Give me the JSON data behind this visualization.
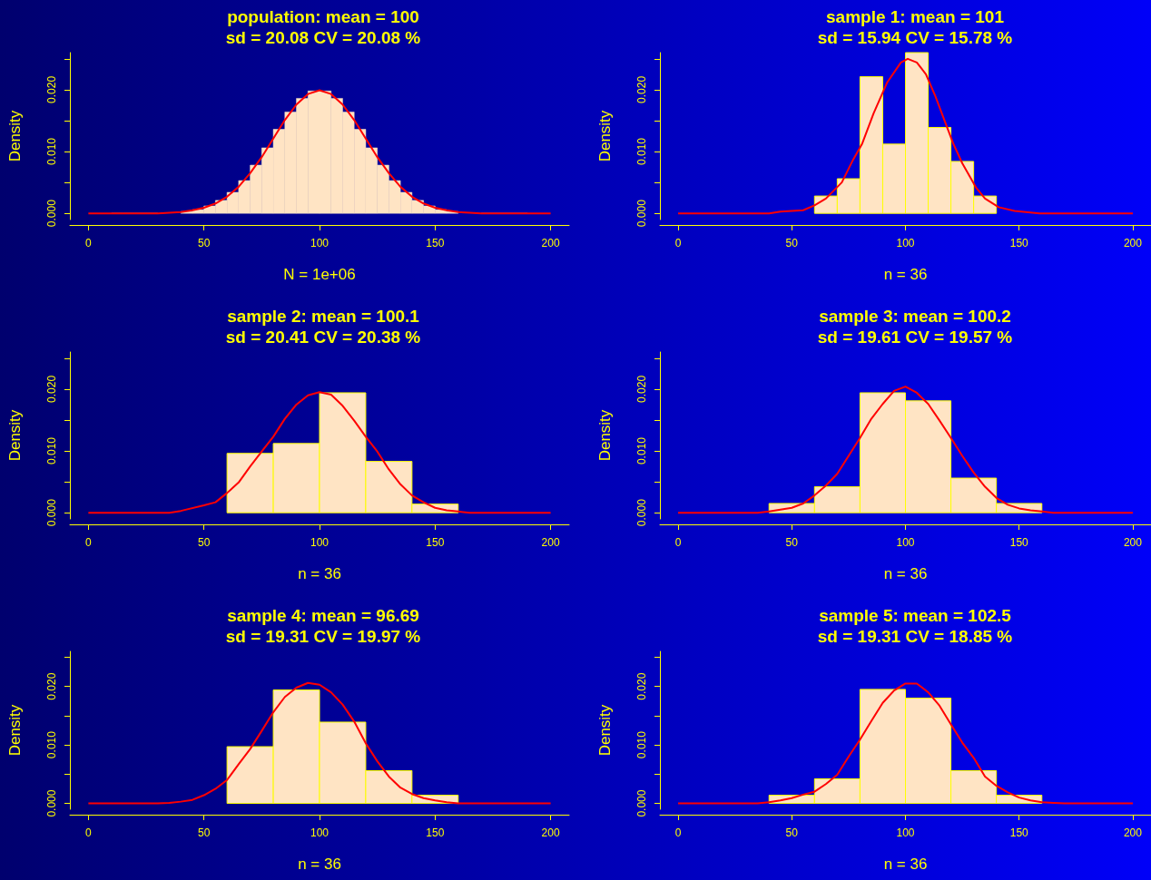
{
  "chart_data": [
    {
      "type": "histogram",
      "title": "population: mean = 100",
      "subtitle": "sd = 20.08 CV = 20.08 %",
      "xlabel": "N = 1e+06",
      "ylabel": "Density",
      "xlim": [
        -8,
        208
      ],
      "ylim": [
        -0.001,
        0.026
      ],
      "xticks": [
        0,
        50,
        100,
        150,
        200
      ],
      "yticks": [
        {
          "value": 0,
          "label": "0.000"
        },
        {
          "value": 0.005,
          "label": null
        },
        {
          "value": 0.01,
          "label": "0.010"
        },
        {
          "value": 0.015,
          "label": null
        },
        {
          "value": 0.02,
          "label": "0.020"
        },
        {
          "value": 0.025,
          "label": null
        }
      ],
      "series": [
        {
          "type": "histogram",
          "color": "#ffe4c4",
          "bins": [
            10,
            15,
            20,
            25,
            30,
            35,
            40,
            45,
            50,
            55,
            60,
            65,
            70,
            75,
            80,
            85,
            90,
            95,
            100,
            105,
            110,
            115,
            120,
            125,
            130,
            135,
            140,
            145,
            150,
            155,
            160,
            165,
            170,
            175,
            180,
            185,
            190
          ],
          "values": [
            0,
            0,
            0,
            0,
            null,
            null,
            0.0003,
            0.0006,
            0.0012,
            0.0021,
            0.0034,
            0.0053,
            0.0078,
            0.0106,
            0.0136,
            0.0164,
            0.0186,
            0.0198,
            0.0198,
            0.0186,
            0.0164,
            0.0136,
            0.0106,
            0.0078,
            0.0053,
            0.0034,
            0.0021,
            0.0012,
            0.0006,
            0.0003,
            null,
            null,
            0,
            0,
            0,
            0
          ]
        },
        {
          "type": "line",
          "color": "#ff0000",
          "x": [
            0,
            5,
            10,
            15,
            20,
            25,
            30,
            35,
            40,
            45,
            50,
            55,
            60,
            65,
            70,
            75,
            80,
            85,
            90,
            95,
            100,
            105,
            110,
            115,
            120,
            125,
            130,
            135,
            140,
            145,
            150,
            155,
            160,
            165,
            170,
            175,
            180,
            185,
            190,
            195,
            200
          ],
          "values": [
            0,
            0,
            0,
            0,
            0,
            0,
            0,
            0.0001,
            0.0002,
            0.0005,
            0.0009,
            0.0016,
            0.0027,
            0.0043,
            0.0065,
            0.0091,
            0.0121,
            0.0151,
            0.0176,
            0.0193,
            0.0199,
            0.0193,
            0.0176,
            0.0151,
            0.0121,
            0.0091,
            0.0065,
            0.0043,
            0.0027,
            0.0016,
            0.0009,
            0.0005,
            0.0002,
            0.0001,
            0,
            0,
            0,
            0,
            0,
            0,
            0
          ]
        }
      ]
    },
    {
      "type": "histogram",
      "title": "sample 1: mean = 101",
      "subtitle": "sd = 15.94 CV = 15.78 %",
      "xlabel": "n = 36",
      "ylabel": "Density",
      "xlim": [
        -8,
        208
      ],
      "ylim": [
        -0.001,
        0.026
      ],
      "xticks": [
        0,
        50,
        100,
        150,
        200
      ],
      "yticks": [
        {
          "value": 0,
          "label": "0.000"
        },
        {
          "value": 0.005,
          "label": null
        },
        {
          "value": 0.01,
          "label": "0.010"
        },
        {
          "value": 0.015,
          "label": null
        },
        {
          "value": 0.02,
          "label": "0.020"
        },
        {
          "value": 0.025,
          "label": null
        }
      ],
      "series": [
        {
          "type": "histogram",
          "color": "#ffe4c4",
          "bins": [
            60,
            70,
            80,
            90,
            100,
            110,
            120,
            130,
            140
          ],
          "values": [
            0.0028,
            0.0056,
            0.0221,
            0.0112,
            0.026,
            0.0139,
            0.0084,
            0.0028
          ]
        },
        {
          "type": "line",
          "color": "#ff0000",
          "x": [
            0,
            40,
            45,
            55,
            60,
            65,
            72,
            77,
            81,
            86,
            92,
            98,
            101,
            105,
            109,
            113,
            117,
            121,
            125,
            131,
            135,
            141,
            148,
            159,
            200
          ],
          "values": [
            0,
            0,
            0.0003,
            0.0005,
            0.0013,
            0.0024,
            0.005,
            0.0087,
            0.0113,
            0.0162,
            0.0212,
            0.0244,
            0.025,
            0.0244,
            0.0225,
            0.0191,
            0.0152,
            0.0113,
            0.0081,
            0.0042,
            0.0024,
            0.001,
            0.0004,
            0,
            0
          ]
        }
      ]
    },
    {
      "type": "histogram",
      "title": "sample 2: mean = 100.1",
      "subtitle": "sd = 20.41 CV = 20.38 %",
      "xlabel": "n = 36",
      "ylabel": "Density",
      "xlim": [
        -8,
        208
      ],
      "ylim": [
        -0.001,
        0.026
      ],
      "xticks": [
        0,
        50,
        100,
        150,
        200
      ],
      "yticks": [
        {
          "value": 0,
          "label": "0.000"
        },
        {
          "value": 0.005,
          "label": null
        },
        {
          "value": 0.01,
          "label": "0.010"
        },
        {
          "value": 0.015,
          "label": null
        },
        {
          "value": 0.02,
          "label": "0.020"
        },
        {
          "value": 0.025,
          "label": null
        }
      ],
      "series": [
        {
          "type": "histogram",
          "color": "#ffe4c4",
          "bins": [
            60,
            80,
            100,
            120,
            140,
            160
          ],
          "values": [
            0.0096,
            0.0112,
            0.0194,
            0.0083,
            0.0014
          ]
        },
        {
          "type": "line",
          "color": "#ff0000",
          "x": [
            0,
            35,
            40,
            50,
            55,
            60,
            65,
            70,
            75,
            80,
            85,
            90,
            95,
            100,
            105,
            110,
            115,
            120,
            125,
            130,
            135,
            140,
            145,
            150,
            155,
            160,
            165,
            200
          ],
          "values": [
            0,
            0,
            0.0003,
            0.0012,
            0.0017,
            0.0032,
            0.0049,
            0.0075,
            0.0099,
            0.0123,
            0.0152,
            0.0175,
            0.019,
            0.0195,
            0.0191,
            0.0173,
            0.0149,
            0.0123,
            0.0099,
            0.007,
            0.0046,
            0.0028,
            0.0017,
            0.0008,
            0.0004,
            0.0002,
            0,
            0
          ]
        }
      ]
    },
    {
      "type": "histogram",
      "title": "sample 3: mean = 100.2",
      "subtitle": "sd = 19.61 CV = 19.57 %",
      "xlabel": "n = 36",
      "ylabel": "Density",
      "xlim": [
        -8,
        208
      ],
      "ylim": [
        -0.001,
        0.026
      ],
      "xticks": [
        0,
        50,
        100,
        150,
        200
      ],
      "yticks": [
        {
          "value": 0,
          "label": "0.000"
        },
        {
          "value": 0.005,
          "label": null
        },
        {
          "value": 0.01,
          "label": "0.010"
        },
        {
          "value": 0.015,
          "label": null
        },
        {
          "value": 0.02,
          "label": "0.020"
        },
        {
          "value": 0.025,
          "label": null
        }
      ],
      "series": [
        {
          "type": "histogram",
          "color": "#ffe4c4",
          "bins": [
            40,
            60,
            80,
            100,
            120,
            140,
            160
          ],
          "values": [
            0.0015,
            0.0042,
            0.0194,
            0.0181,
            0.0056,
            0.0015
          ]
        },
        {
          "type": "line",
          "color": "#ff0000",
          "x": [
            0,
            35,
            40,
            45,
            50,
            55,
            60,
            65,
            70,
            75,
            80,
            85,
            90,
            95,
            100,
            105,
            110,
            115,
            120,
            125,
            130,
            135,
            140,
            145,
            150,
            155,
            160,
            165,
            200
          ],
          "values": [
            0,
            0,
            0.0002,
            0.0005,
            0.0008,
            0.0015,
            0.0028,
            0.0044,
            0.0063,
            0.0092,
            0.0121,
            0.0152,
            0.0176,
            0.0197,
            0.0204,
            0.0194,
            0.0176,
            0.0149,
            0.0121,
            0.0092,
            0.0065,
            0.0042,
            0.0024,
            0.0013,
            0.0007,
            0.0004,
            0.0002,
            0,
            0
          ]
        }
      ]
    },
    {
      "type": "histogram",
      "title": "sample 4: mean = 96.69",
      "subtitle": "sd = 19.31 CV = 19.97 %",
      "xlabel": "n = 36",
      "ylabel": "Density",
      "xlim": [
        -8,
        208
      ],
      "ylim": [
        -0.001,
        0.026
      ],
      "xticks": [
        0,
        50,
        100,
        150,
        200
      ],
      "yticks": [
        {
          "value": 0,
          "label": "0.000"
        },
        {
          "value": 0.005,
          "label": null
        },
        {
          "value": 0.01,
          "label": "0.010"
        },
        {
          "value": 0.015,
          "label": null
        },
        {
          "value": 0.02,
          "label": "0.020"
        },
        {
          "value": 0.025,
          "label": null
        }
      ],
      "series": [
        {
          "type": "histogram",
          "color": "#ffe4c4",
          "bins": [
            60,
            80,
            100,
            120,
            140,
            160
          ],
          "values": [
            0.0097,
            0.0194,
            0.0139,
            0.0056,
            0.0014
          ]
        },
        {
          "type": "line",
          "color": "#ff0000",
          "x": [
            0,
            30,
            35,
            40,
            45,
            50,
            55,
            60,
            65,
            70,
            75,
            80,
            85,
            90,
            95,
            100,
            105,
            110,
            115,
            120,
            125,
            130,
            135,
            140,
            145,
            150,
            155,
            160,
            200
          ],
          "values": [
            0,
            0,
            0.0001,
            0.0003,
            0.0006,
            0.0014,
            0.0025,
            0.004,
            0.0067,
            0.0093,
            0.0124,
            0.0156,
            0.0182,
            0.0198,
            0.0206,
            0.0203,
            0.019,
            0.0169,
            0.014,
            0.0103,
            0.0072,
            0.0046,
            0.0027,
            0.0016,
            0.0009,
            0.0005,
            0.0002,
            0,
            0
          ]
        }
      ]
    },
    {
      "type": "histogram",
      "title": "sample 5: mean = 102.5",
      "subtitle": "sd = 19.31 CV = 18.85 %",
      "xlabel": "n = 36",
      "ylabel": "Density",
      "xlim": [
        -8,
        208
      ],
      "ylim": [
        -0.001,
        0.026
      ],
      "xticks": [
        0,
        50,
        100,
        150,
        200
      ],
      "yticks": [
        {
          "value": 0,
          "label": "0.000"
        },
        {
          "value": 0.005,
          "label": null
        },
        {
          "value": 0.01,
          "label": "0.010"
        },
        {
          "value": 0.015,
          "label": null
        },
        {
          "value": 0.02,
          "label": "0.020"
        },
        {
          "value": 0.025,
          "label": null
        }
      ],
      "series": [
        {
          "type": "histogram",
          "color": "#ffe4c4",
          "bins": [
            40,
            60,
            80,
            100,
            120,
            140,
            160
          ],
          "values": [
            0.0014,
            0.0042,
            0.0195,
            0.018,
            0.0056,
            0.0014
          ]
        },
        {
          "type": "line",
          "color": "#ff0000",
          "x": [
            0,
            35,
            40,
            45,
            50,
            55,
            60,
            65,
            70,
            75,
            80,
            85,
            90,
            95,
            100,
            105,
            110,
            115,
            120,
            125,
            130,
            135,
            140,
            145,
            150,
            155,
            160,
            165,
            170,
            200
          ],
          "values": [
            0,
            0,
            0.0002,
            0.0005,
            0.0009,
            0.0015,
            0.002,
            0.0033,
            0.0049,
            0.008,
            0.0109,
            0.0141,
            0.0172,
            0.0193,
            0.0205,
            0.0205,
            0.019,
            0.0167,
            0.0135,
            0.0104,
            0.0078,
            0.0046,
            0.003,
            0.0019,
            0.001,
            0.0005,
            0.0002,
            0.0001,
            0,
            0
          ]
        }
      ]
    }
  ]
}
